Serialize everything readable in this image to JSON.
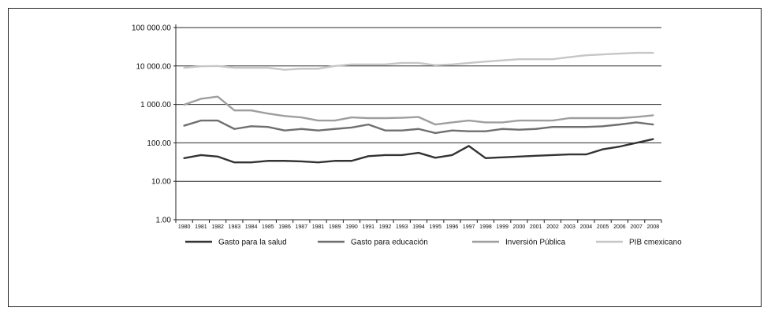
{
  "chart_data": {
    "type": "line",
    "yscale": "log",
    "ylim": [
      1,
      100000
    ],
    "grid": true,
    "legend_position": "bottom",
    "y_ticks": [
      "100 000.00",
      "10 000.00",
      "1 000.00",
      "100.00",
      "10.00",
      "1.00"
    ],
    "y_tick_values": [
      100000,
      10000,
      1000,
      100,
      10,
      1
    ],
    "categories": [
      "1980",
      "1981",
      "1982",
      "1983",
      "1984",
      "1985",
      "1986",
      "1987",
      "1981",
      "1989",
      "1990",
      "1991",
      "1992",
      "1993",
      "1994",
      "1995",
      "1996",
      "1997",
      "1998",
      "1999",
      "2000",
      "2001",
      "2002",
      "2003",
      "2004",
      "2005",
      "2006",
      "2007",
      "2008"
    ],
    "series": [
      {
        "name": "Gasto para la salud",
        "color": "#333333",
        "values": [
          40,
          48,
          44,
          31,
          31,
          34,
          34,
          33,
          31,
          34,
          34,
          45,
          48,
          48,
          55,
          41,
          48,
          83,
          40,
          42,
          44,
          46,
          48,
          50,
          50,
          68,
          80,
          100,
          125
        ]
      },
      {
        "name": "Gasto para educación",
        "color": "#6f6f6f",
        "values": [
          280,
          380,
          380,
          230,
          270,
          260,
          210,
          230,
          210,
          230,
          250,
          300,
          210,
          210,
          230,
          180,
          210,
          200,
          200,
          230,
          220,
          230,
          260,
          260,
          260,
          270,
          300,
          340,
          300
        ]
      },
      {
        "name": "Inversión Pública",
        "color": "#9e9e9e",
        "values": [
          980,
          1400,
          1600,
          700,
          700,
          580,
          500,
          460,
          380,
          380,
          460,
          440,
          440,
          450,
          470,
          300,
          340,
          380,
          340,
          340,
          380,
          380,
          380,
          440,
          440,
          440,
          440,
          470,
          520
        ]
      },
      {
        "name": "PIB cmexicano",
        "color": "#c6c6c6",
        "values": [
          9000,
          9800,
          10000,
          9000,
          9000,
          9000,
          8000,
          8500,
          8500,
          10000,
          11000,
          11000,
          11000,
          12000,
          12000,
          10500,
          11000,
          12000,
          13000,
          14000,
          15000,
          15000,
          15000,
          17000,
          19000,
          20000,
          21000,
          22000,
          22000
        ]
      }
    ]
  }
}
